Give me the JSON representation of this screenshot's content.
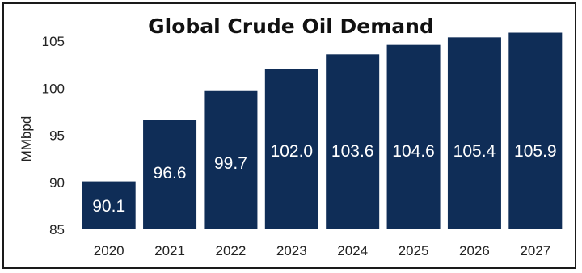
{
  "chart_data": {
    "type": "bar",
    "title": "Global Crude Oil Demand",
    "ylabel": "MMbpd",
    "xlabel": "",
    "categories": [
      "2020",
      "2021",
      "2022",
      "2023",
      "2024",
      "2025",
      "2026",
      "2027"
    ],
    "values": [
      90.1,
      96.6,
      99.7,
      102.0,
      103.6,
      104.6,
      105.4,
      105.9
    ],
    "value_labels": [
      "90.1",
      "96.6",
      "99.7",
      "102.0",
      "103.6",
      "104.6",
      "105.4",
      "105.9"
    ],
    "ylim": [
      85,
      105
    ],
    "yticks": [
      85,
      90,
      95,
      100,
      105
    ],
    "grid": false,
    "bar_color": "#0f2d57",
    "label_color": "#ffffff"
  }
}
